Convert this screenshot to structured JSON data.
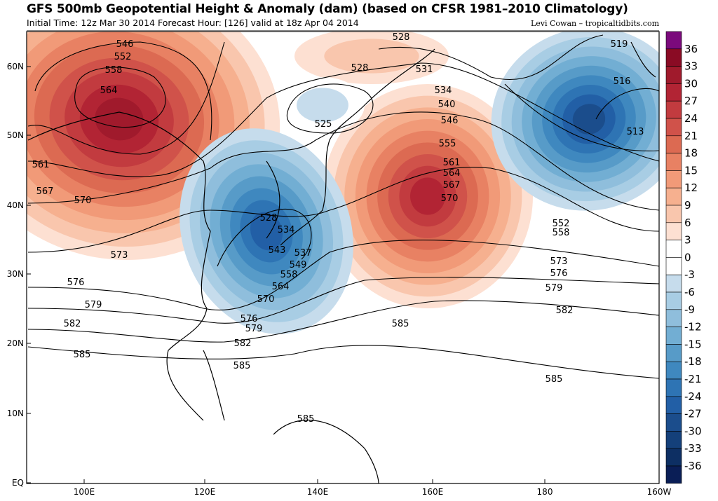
{
  "header": {
    "title": "GFS 500mb Geopotential Height & Anomaly (dam) (based on CFSR 1981–2010 Climatology)",
    "subtitle": "Initial Time: 12z Mar 30 2014 Forecast Hour: [126] valid at 18z Apr 04 2014",
    "credit": "Levi Cowan – tropicaltidbits.com"
  },
  "map": {
    "lat_labels": [
      "60N",
      "50N",
      "40N",
      "30N",
      "20N",
      "10N",
      "EQ"
    ],
    "lon_labels": [
      "100E",
      "120E",
      "140E",
      "160E",
      "180",
      "160W"
    ],
    "contour_labels": [
      "546",
      "552",
      "558",
      "564",
      "561",
      "567",
      "570",
      "573",
      "576",
      "579",
      "582",
      "585",
      "528",
      "528",
      "525",
      "531",
      "534",
      "540",
      "546",
      "555",
      "561",
      "564",
      "567",
      "570",
      "519",
      "516",
      "513",
      "552",
      "558",
      "573",
      "576",
      "579",
      "582",
      "585",
      "585",
      "585",
      "585",
      "528",
      "534",
      "543",
      "537",
      "549",
      "558",
      "564",
      "570",
      "576",
      "579",
      "582"
    ]
  },
  "colorbar": {
    "labels": [
      "36",
      "33",
      "30",
      "27",
      "24",
      "21",
      "18",
      "15",
      "12",
      "9",
      "6",
      "3",
      "0",
      "-3",
      "-6",
      "-9",
      "-12",
      "-15",
      "-18",
      "-21",
      "-24",
      "-27",
      "-30",
      "-33",
      "-36"
    ],
    "colors": [
      "#7b0a7c",
      "#8a0b24",
      "#a01a2c",
      "#b22434",
      "#c23b3f",
      "#d0524a",
      "#dc6a52",
      "#e88163",
      "#f19a78",
      "#f6b08f",
      "#f9c6ad",
      "#fde0d2",
      "#ffffff",
      "#ffffff",
      "#c6dcec",
      "#a8cde4",
      "#8fbedc",
      "#72aed3",
      "#579bc8",
      "#3f88bf",
      "#2e74b4",
      "#225fa6",
      "#1b4d8c",
      "#14407a",
      "#0d2f63",
      "#0a1e56"
    ]
  }
}
